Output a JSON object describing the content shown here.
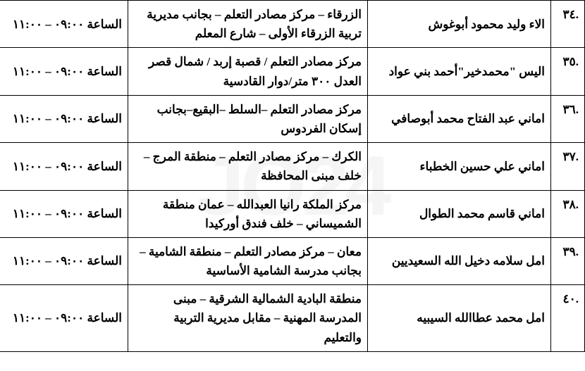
{
  "watermark": "JO24",
  "rows": [
    {
      "num": ".٣٤",
      "name": "الاء وليد محمود أبوغوش",
      "location": "الزرقاء – مركز مصادر التعلم – بجانب مديرية تربية الزرقاء الأولى – شارع المعلم",
      "time": "الساعة ٠٩:٠٠ – ١١:٠٠"
    },
    {
      "num": ".٣٥",
      "name": "اليس \"محمدخير\"أحمد بني عواد",
      "location": "مركز مصادر التعلم / قصبة إربد / شمال قصر العدل ٣٠٠ متر/دوار القادسية",
      "time": "الساعة ٠٩:٠٠ – ١١:٠٠"
    },
    {
      "num": ".٣٦",
      "name": "اماني عبد الفتاح محمد أبوصافي",
      "location": "مركز مصادر التعلم –السلط –البقيع–بجانب إسكان الفردوس",
      "time": "الساعة ٠٩:٠٠ – ١١:٠٠"
    },
    {
      "num": ".٣٧",
      "name": "اماني علي حسين الخطباء",
      "location": "الكرك – مركز مصادر التعلم – منطقة المرج – خلف مبنى المحافظة",
      "time": "الساعة ٠٩:٠٠ – ١١:٠٠"
    },
    {
      "num": ".٣٨",
      "name": "اماني قاسم محمد الطوال",
      "location": "مركز الملكة رانيا العبدالله – عمان منطقة الشميساني – خلف فندق أوركيدا",
      "time": "الساعة ٠٩:٠٠ – ١١:٠٠"
    },
    {
      "num": ".٣٩",
      "name": "امل سلامه دخيل الله السعيديين",
      "location": "معان – مركز مصادر التعلم – منطقة الشامية – بجانب مدرسة الشامية الأساسية",
      "time": "الساعة ٠٩:٠٠ – ١١:٠٠"
    },
    {
      "num": ".٤٠",
      "name": "امل محمد عطاالله السيبيه",
      "location": "منطقة البادية الشمالية الشرقية – مبنى المدرسة المهنية – مقابل مديرية التربية والتعليم",
      "time": "الساعة ٠٩:٠٠ – ١١:٠٠"
    }
  ]
}
